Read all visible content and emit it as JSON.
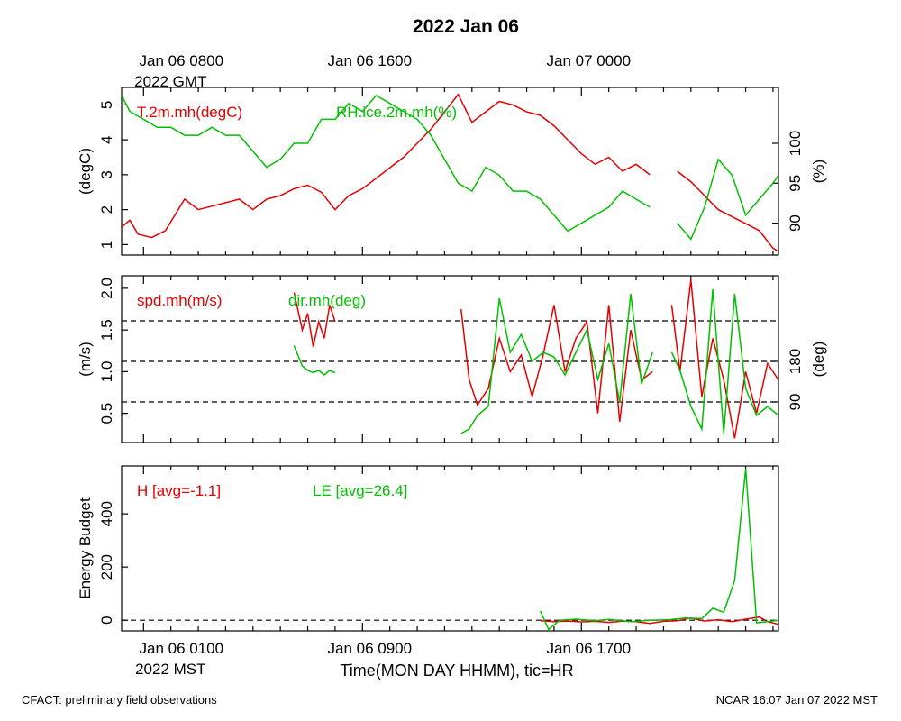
{
  "title": "2022 Jan 06",
  "top_axis": {
    "labels": [
      {
        "t": 0,
        "line1": "Jan 06 0800",
        "line2": "2022 GMT"
      },
      {
        "t": 8,
        "line1": "Jan 06 1600",
        "line2": ""
      },
      {
        "t": 16,
        "line1": "Jan 07 0000",
        "line2": ""
      }
    ]
  },
  "bottom_axis": {
    "labels": [
      {
        "t": 0,
        "line1": "Jan 06 0100",
        "line2": "2022 MST"
      },
      {
        "t": 8,
        "line1": "Jan 06 0900",
        "line2": ""
      },
      {
        "t": 16,
        "line1": "Jan 06 1700",
        "line2": ""
      }
    ],
    "xlabel": "Time(MON DAY HHMM), tic=HR"
  },
  "footer": {
    "left": "CFACT: preliminary field observations",
    "right": "NCAR 16:07 Jan 07 2022 MST"
  },
  "colors": {
    "series1": "#e60000",
    "series2": "#00c000"
  },
  "chart_data": [
    {
      "type": "line",
      "x_unit": "hours since Jan 06 0100 MST",
      "xlim": [
        -0.8,
        23.2
      ],
      "left_axis": {
        "label": "(degC)",
        "lim": [
          0.7,
          5.5
        ],
        "ticks": [
          1,
          2,
          3,
          4,
          5
        ]
      },
      "right_axis": {
        "label": "(%)",
        "lim": [
          86,
          107
        ],
        "ticks": [
          90,
          95,
          100
        ]
      },
      "series": [
        {
          "name": "T.2m.mh(degC)",
          "axis": "left",
          "color": "#e60000",
          "points": [
            [
              -0.8,
              1.5
            ],
            [
              -0.5,
              1.7
            ],
            [
              -0.2,
              1.3
            ],
            [
              0.3,
              1.2
            ],
            [
              0.8,
              1.4
            ],
            [
              1.5,
              2.3
            ],
            [
              2.0,
              2.0
            ],
            [
              2.5,
              2.1
            ],
            [
              3.0,
              2.2
            ],
            [
              3.5,
              2.3
            ],
            [
              4.0,
              2.0
            ],
            [
              4.5,
              2.3
            ],
            [
              5.0,
              2.4
            ],
            [
              5.5,
              2.6
            ],
            [
              6.0,
              2.7
            ],
            [
              6.5,
              2.5
            ],
            [
              7.0,
              2.0
            ],
            [
              7.5,
              2.4
            ],
            [
              8.0,
              2.6
            ],
            [
              8.5,
              2.9
            ],
            [
              9.0,
              3.2
            ],
            [
              9.5,
              3.5
            ],
            [
              10.0,
              3.9
            ],
            [
              10.5,
              4.3
            ],
            [
              11.0,
              4.8
            ],
            [
              11.5,
              5.3
            ],
            [
              12.0,
              4.5
            ],
            [
              12.5,
              4.8
            ],
            [
              13.0,
              5.1
            ],
            [
              13.5,
              5.0
            ],
            [
              14.0,
              4.8
            ],
            [
              14.5,
              4.7
            ],
            [
              15.0,
              4.4
            ],
            [
              15.5,
              4.0
            ],
            [
              16.0,
              3.6
            ],
            [
              16.5,
              3.3
            ],
            [
              17.0,
              3.5
            ],
            [
              17.5,
              3.1
            ],
            [
              18.0,
              3.3
            ],
            [
              18.5,
              3.0
            ]
          ],
          "points2": [
            [
              19.5,
              3.1
            ],
            [
              20.0,
              2.8
            ],
            [
              20.5,
              2.4
            ],
            [
              21.0,
              2.0
            ],
            [
              21.5,
              1.8
            ],
            [
              22.0,
              1.6
            ],
            [
              22.5,
              1.4
            ],
            [
              23.0,
              0.9
            ],
            [
              23.2,
              0.8
            ]
          ]
        },
        {
          "name": "RH.ice.2m.mh(%)",
          "axis": "right",
          "color": "#00c000",
          "points": [
            [
              -0.8,
              106
            ],
            [
              -0.5,
              104
            ],
            [
              0.0,
              103
            ],
            [
              0.5,
              102
            ],
            [
              1.0,
              102
            ],
            [
              1.5,
              101
            ],
            [
              2.0,
              101
            ],
            [
              2.5,
              102
            ],
            [
              3.0,
              101
            ],
            [
              3.5,
              101
            ],
            [
              4.0,
              99
            ],
            [
              4.5,
              97
            ],
            [
              5.0,
              98
            ],
            [
              5.5,
              100
            ],
            [
              6.0,
              100
            ],
            [
              6.5,
              103
            ],
            [
              7.0,
              103
            ],
            [
              7.5,
              105
            ],
            [
              8.0,
              104
            ],
            [
              8.5,
              106
            ],
            [
              9.0,
              105
            ],
            [
              9.5,
              104
            ],
            [
              10.0,
              103
            ],
            [
              10.5,
              101
            ],
            [
              11.0,
              98
            ],
            [
              11.5,
              95
            ],
            [
              12.0,
              94
            ],
            [
              12.5,
              97
            ],
            [
              13.0,
              96
            ],
            [
              13.5,
              94
            ],
            [
              14.0,
              94
            ],
            [
              14.5,
              93
            ],
            [
              15.0,
              91
            ],
            [
              15.5,
              89
            ],
            [
              16.0,
              90
            ],
            [
              16.5,
              91
            ],
            [
              17.0,
              92
            ],
            [
              17.5,
              94
            ],
            [
              18.0,
              93
            ],
            [
              18.5,
              92
            ]
          ],
          "points2": [
            [
              19.5,
              90
            ],
            [
              20.0,
              88
            ],
            [
              20.5,
              92
            ],
            [
              21.0,
              98
            ],
            [
              21.5,
              96
            ],
            [
              22.0,
              91
            ],
            [
              22.5,
              93
            ],
            [
              23.0,
              95
            ],
            [
              23.2,
              96
            ]
          ]
        }
      ]
    },
    {
      "type": "line",
      "x_unit": "hours since Jan 06 0100 MST",
      "xlim": [
        -0.8,
        23.2
      ],
      "left_axis": {
        "label": "(m/s)",
        "lim": [
          0.15,
          2.15
        ],
        "ticks": [
          0.5,
          1.0,
          1.5,
          2.0
        ]
      },
      "right_axis": {
        "label": "(deg)",
        "lim": [
          0,
          370
        ],
        "ticks": [
          90,
          180
        ]
      },
      "reference_lines_deg": [
        90,
        180,
        270
      ],
      "series": [
        {
          "name": "spd.mh(m/s)",
          "axis": "left",
          "color": "#e60000",
          "points": [
            [
              5.5,
              1.95
            ],
            [
              5.8,
              1.5
            ],
            [
              6.0,
              1.7
            ],
            [
              6.2,
              1.3
            ],
            [
              6.4,
              1.6
            ],
            [
              6.6,
              1.4
            ],
            [
              6.8,
              1.8
            ],
            [
              7.0,
              1.6
            ]
          ],
          "points2": [
            [
              11.6,
              1.75
            ],
            [
              11.9,
              0.9
            ],
            [
              12.2,
              0.6
            ],
            [
              12.6,
              0.8
            ],
            [
              13.0,
              1.4
            ],
            [
              13.4,
              1.0
            ],
            [
              13.8,
              1.2
            ],
            [
              14.2,
              0.7
            ],
            [
              14.6,
              1.2
            ],
            [
              15.0,
              1.8
            ],
            [
              15.4,
              1.0
            ],
            [
              15.8,
              1.4
            ],
            [
              16.2,
              1.6
            ],
            [
              16.6,
              0.5
            ],
            [
              17.0,
              1.8
            ],
            [
              17.4,
              0.4
            ],
            [
              17.8,
              1.5
            ],
            [
              18.2,
              0.9
            ],
            [
              18.6,
              1.0
            ]
          ],
          "points3": [
            [
              19.3,
              1.8
            ],
            [
              19.6,
              1.0
            ],
            [
              20.0,
              2.1
            ],
            [
              20.4,
              0.7
            ],
            [
              20.8,
              1.4
            ],
            [
              21.2,
              0.9
            ],
            [
              21.6,
              0.2
            ],
            [
              22.0,
              1.0
            ],
            [
              22.4,
              0.5
            ],
            [
              22.8,
              1.1
            ],
            [
              23.2,
              0.9
            ]
          ]
        },
        {
          "name": "dir.mh(deg)",
          "axis": "right",
          "color": "#00c000",
          "points": [
            [
              5.5,
              215
            ],
            [
              5.8,
              170
            ],
            [
              6.0,
              160
            ],
            [
              6.2,
              155
            ],
            [
              6.4,
              160
            ],
            [
              6.6,
              150
            ],
            [
              6.8,
              160
            ],
            [
              7.0,
              155
            ]
          ],
          "points2": [
            [
              11.6,
              20
            ],
            [
              11.9,
              30
            ],
            [
              12.2,
              60
            ],
            [
              12.6,
              80
            ],
            [
              13.0,
              320
            ],
            [
              13.4,
              200
            ],
            [
              13.8,
              240
            ],
            [
              14.2,
              180
            ],
            [
              14.6,
              200
            ],
            [
              15.0,
              190
            ],
            [
              15.4,
              150
            ],
            [
              15.8,
              200
            ],
            [
              16.2,
              250
            ],
            [
              16.6,
              140
            ],
            [
              17.0,
              220
            ],
            [
              17.4,
              90
            ],
            [
              17.8,
              330
            ],
            [
              18.2,
              130
            ],
            [
              18.6,
              200
            ]
          ],
          "points3": [
            [
              19.3,
              200
            ],
            [
              19.6,
              160
            ],
            [
              20.0,
              80
            ],
            [
              20.4,
              30
            ],
            [
              20.8,
              340
            ],
            [
              21.2,
              20
            ],
            [
              21.6,
              330
            ],
            [
              22.0,
              120
            ],
            [
              22.4,
              60
            ],
            [
              22.8,
              80
            ],
            [
              23.2,
              60
            ]
          ]
        }
      ]
    },
    {
      "type": "line",
      "x_unit": "hours since Jan 06 0100 MST",
      "xlim": [
        -0.8,
        23.2
      ],
      "left_axis": {
        "label": "Energy Budget",
        "lim": [
          -40,
          580
        ],
        "ticks": [
          0,
          200,
          400
        ]
      },
      "reference_lines": [
        0
      ],
      "series": [
        {
          "name": "H [avg=-1.1]",
          "axis": "left",
          "color": "#e60000",
          "points": [
            [
              14.5,
              -2
            ],
            [
              15.0,
              -5
            ],
            [
              15.5,
              -3
            ],
            [
              16.0,
              -6
            ],
            [
              16.5,
              -4
            ],
            [
              17.0,
              -8
            ],
            [
              17.5,
              -3
            ],
            [
              18.0,
              -5
            ],
            [
              18.5,
              -12
            ],
            [
              19.0,
              -4
            ],
            [
              19.5,
              -2
            ],
            [
              20.0,
              8
            ],
            [
              20.5,
              -3
            ],
            [
              21.0,
              2
            ],
            [
              21.5,
              -5
            ],
            [
              22.0,
              4
            ],
            [
              22.5,
              12
            ],
            [
              22.8,
              -5
            ],
            [
              23.2,
              -15
            ]
          ]
        },
        {
          "name": "LE [avg=26.4]",
          "axis": "left",
          "color": "#00c000",
          "points": [
            [
              14.5,
              35
            ],
            [
              14.8,
              -35
            ],
            [
              15.2,
              0
            ],
            [
              15.8,
              4
            ],
            [
              16.5,
              -2
            ],
            [
              17.0,
              3
            ],
            [
              17.8,
              -5
            ],
            [
              18.5,
              0
            ],
            [
              19.2,
              2
            ],
            [
              19.8,
              8
            ],
            [
              20.4,
              6
            ],
            [
              20.8,
              45
            ],
            [
              21.2,
              30
            ],
            [
              21.6,
              150
            ],
            [
              22.0,
              570
            ],
            [
              22.4,
              -10
            ],
            [
              22.8,
              -5
            ],
            [
              23.2,
              0
            ]
          ]
        }
      ]
    }
  ]
}
